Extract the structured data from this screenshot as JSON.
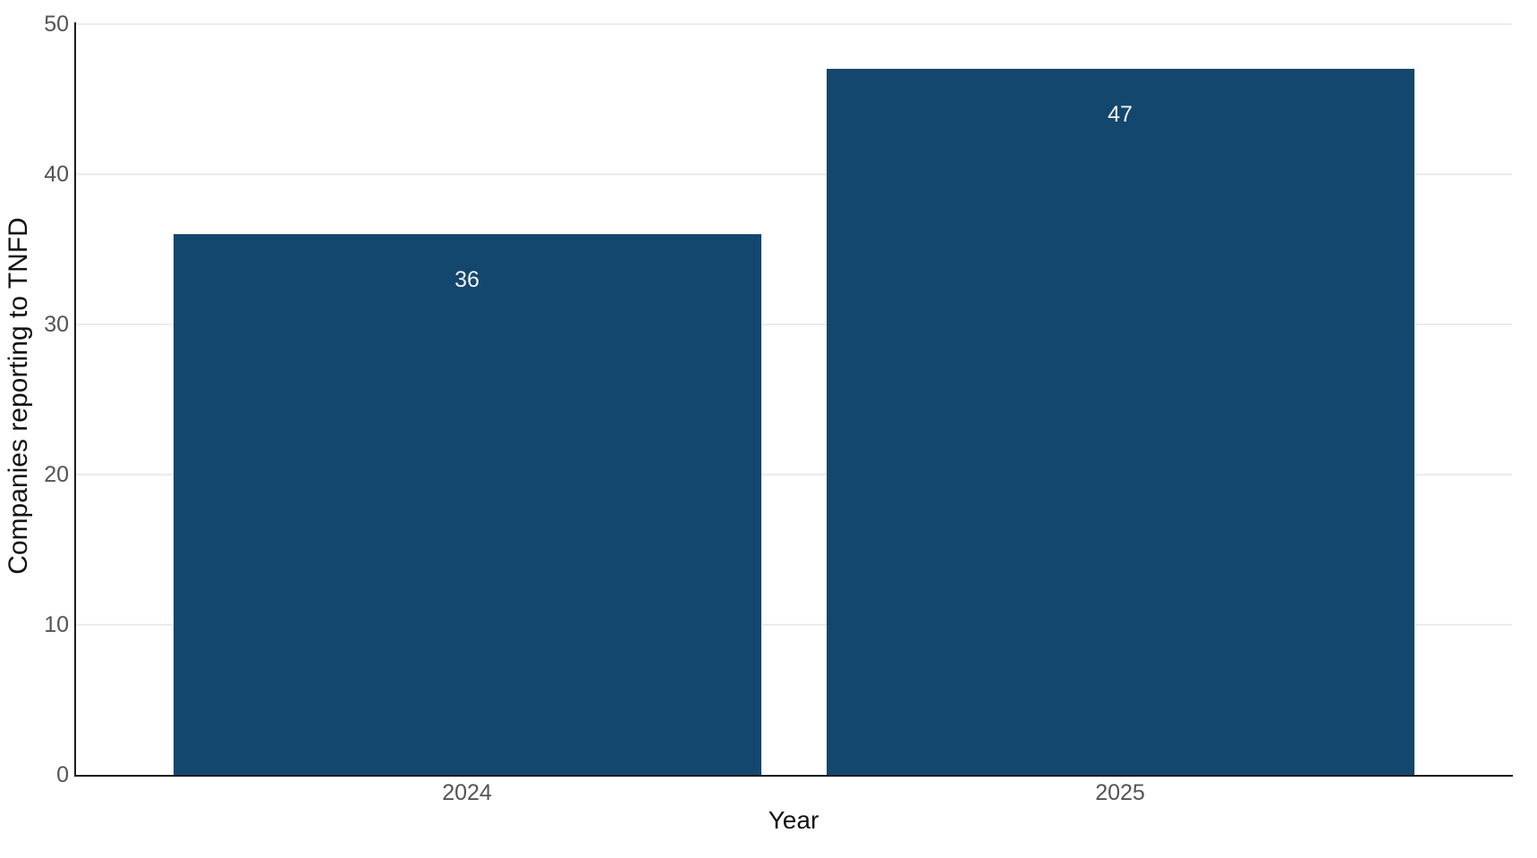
{
  "chart_data": {
    "type": "bar",
    "categories": [
      "2024",
      "2025"
    ],
    "values": [
      36,
      47
    ],
    "bar_value_labels": [
      "36",
      "47"
    ],
    "title": "",
    "xlabel": "Year",
    "ylabel": "Companies reporting to TNFD",
    "ylim": [
      0,
      50
    ],
    "y_ticks": [
      0,
      10,
      20,
      30,
      40,
      50
    ],
    "grid": "horizontal major gridlines only",
    "legend_position": "none",
    "value_label_position": "inside-top-of-bar"
  },
  "colors": {
    "background": "#FFFFFF",
    "bar": "#14476E",
    "gridline": "#ECECEC",
    "axis_line": "#1C1C1C",
    "tick_label": "#545454",
    "axis_title": "#131313",
    "value_label": "#F2F2F2"
  }
}
